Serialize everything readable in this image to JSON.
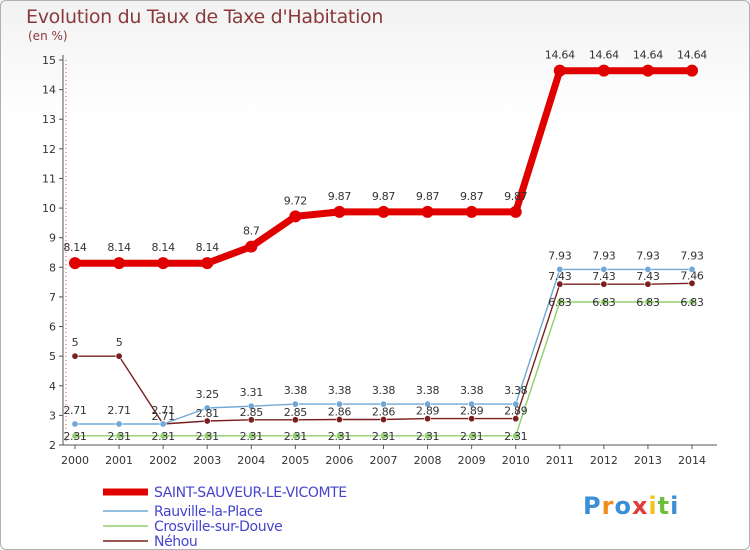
{
  "header": {
    "title": "Evolution du Taux de Taxe d'Habitation",
    "unit": "(en %)"
  },
  "logo": {
    "text": "Proxiti",
    "colors": [
      "#3a8fd6",
      "#f28c1e",
      "#3a8fd6",
      "#e23b3b",
      "#f2c31e",
      "#6cbf3a",
      "#3a8fd6"
    ]
  },
  "chart_data": {
    "type": "line",
    "title": "Evolution du Taux de Taxe d'Habitation",
    "ylabel": "(en %)",
    "xlabel": "",
    "x": [
      "2000",
      "2001",
      "2002",
      "2003",
      "2004",
      "2005",
      "2006",
      "2007",
      "2008",
      "2009",
      "2010",
      "2011",
      "2012",
      "2013",
      "2014"
    ],
    "ylim": [
      2,
      15
    ],
    "yticks": [
      2,
      3,
      4,
      5,
      6,
      7,
      8,
      9,
      10,
      11,
      12,
      13,
      14,
      15
    ],
    "grid": false,
    "legend_position": "bottom-left",
    "series": [
      {
        "name": "SAINT-SAUVEUR-LE-VICOMTE",
        "color": "#e00000",
        "values": [
          8.14,
          8.14,
          8.14,
          8.14,
          8.7,
          9.72,
          9.87,
          9.87,
          9.87,
          9.87,
          9.87,
          14.64,
          14.64,
          14.64,
          14.64
        ],
        "labels": [
          "8.14",
          "8.14",
          "8.14",
          "8.14",
          "8.7",
          "9.72",
          "9.87",
          "9.87",
          "9.87",
          "9.87",
          "9.87",
          "14.64",
          "14.64",
          "14.64",
          "14.64"
        ]
      },
      {
        "name": "Rauville-la-Place",
        "color": "#6fa8d6",
        "values": [
          2.71,
          2.71,
          2.71,
          3.25,
          3.31,
          3.38,
          3.38,
          3.38,
          3.38,
          3.38,
          3.38,
          7.93,
          7.93,
          7.93,
          7.93
        ],
        "labels": [
          "2.71",
          "2.71",
          "2.71",
          "3.25",
          "3.31",
          "3.38",
          "3.38",
          "3.38",
          "3.38",
          "3.38",
          "3.38",
          "7.93",
          "7.93",
          "7.93",
          "7.93"
        ]
      },
      {
        "name": "Crosville-sur-Douve",
        "color": "#8fd06a",
        "values": [
          2.31,
          2.31,
          2.31,
          2.31,
          2.31,
          2.31,
          2.31,
          2.31,
          2.31,
          2.31,
          2.31,
          6.83,
          6.83,
          6.83,
          6.83
        ],
        "labels": [
          "2.31",
          "2.31",
          "2.31",
          "2.31",
          "2.31",
          "2.31",
          "2.31",
          "2.31",
          "2.31",
          "2.31",
          "2.31",
          "6.83",
          "6.83",
          "6.83",
          "6.83"
        ]
      },
      {
        "name": "Néhou",
        "color": "#7a1f1f",
        "values": [
          5,
          5,
          2.71,
          2.81,
          2.85,
          2.85,
          2.86,
          2.86,
          2.89,
          2.89,
          2.89,
          7.43,
          7.43,
          7.43,
          7.46
        ],
        "labels": [
          "5",
          "5",
          "2.71",
          "2.81",
          "2.85",
          "2.85",
          "2.86",
          "2.86",
          "2.89",
          "2.89",
          "2.89",
          "7.43",
          "7.43",
          "7.43",
          "7.46"
        ]
      }
    ]
  }
}
